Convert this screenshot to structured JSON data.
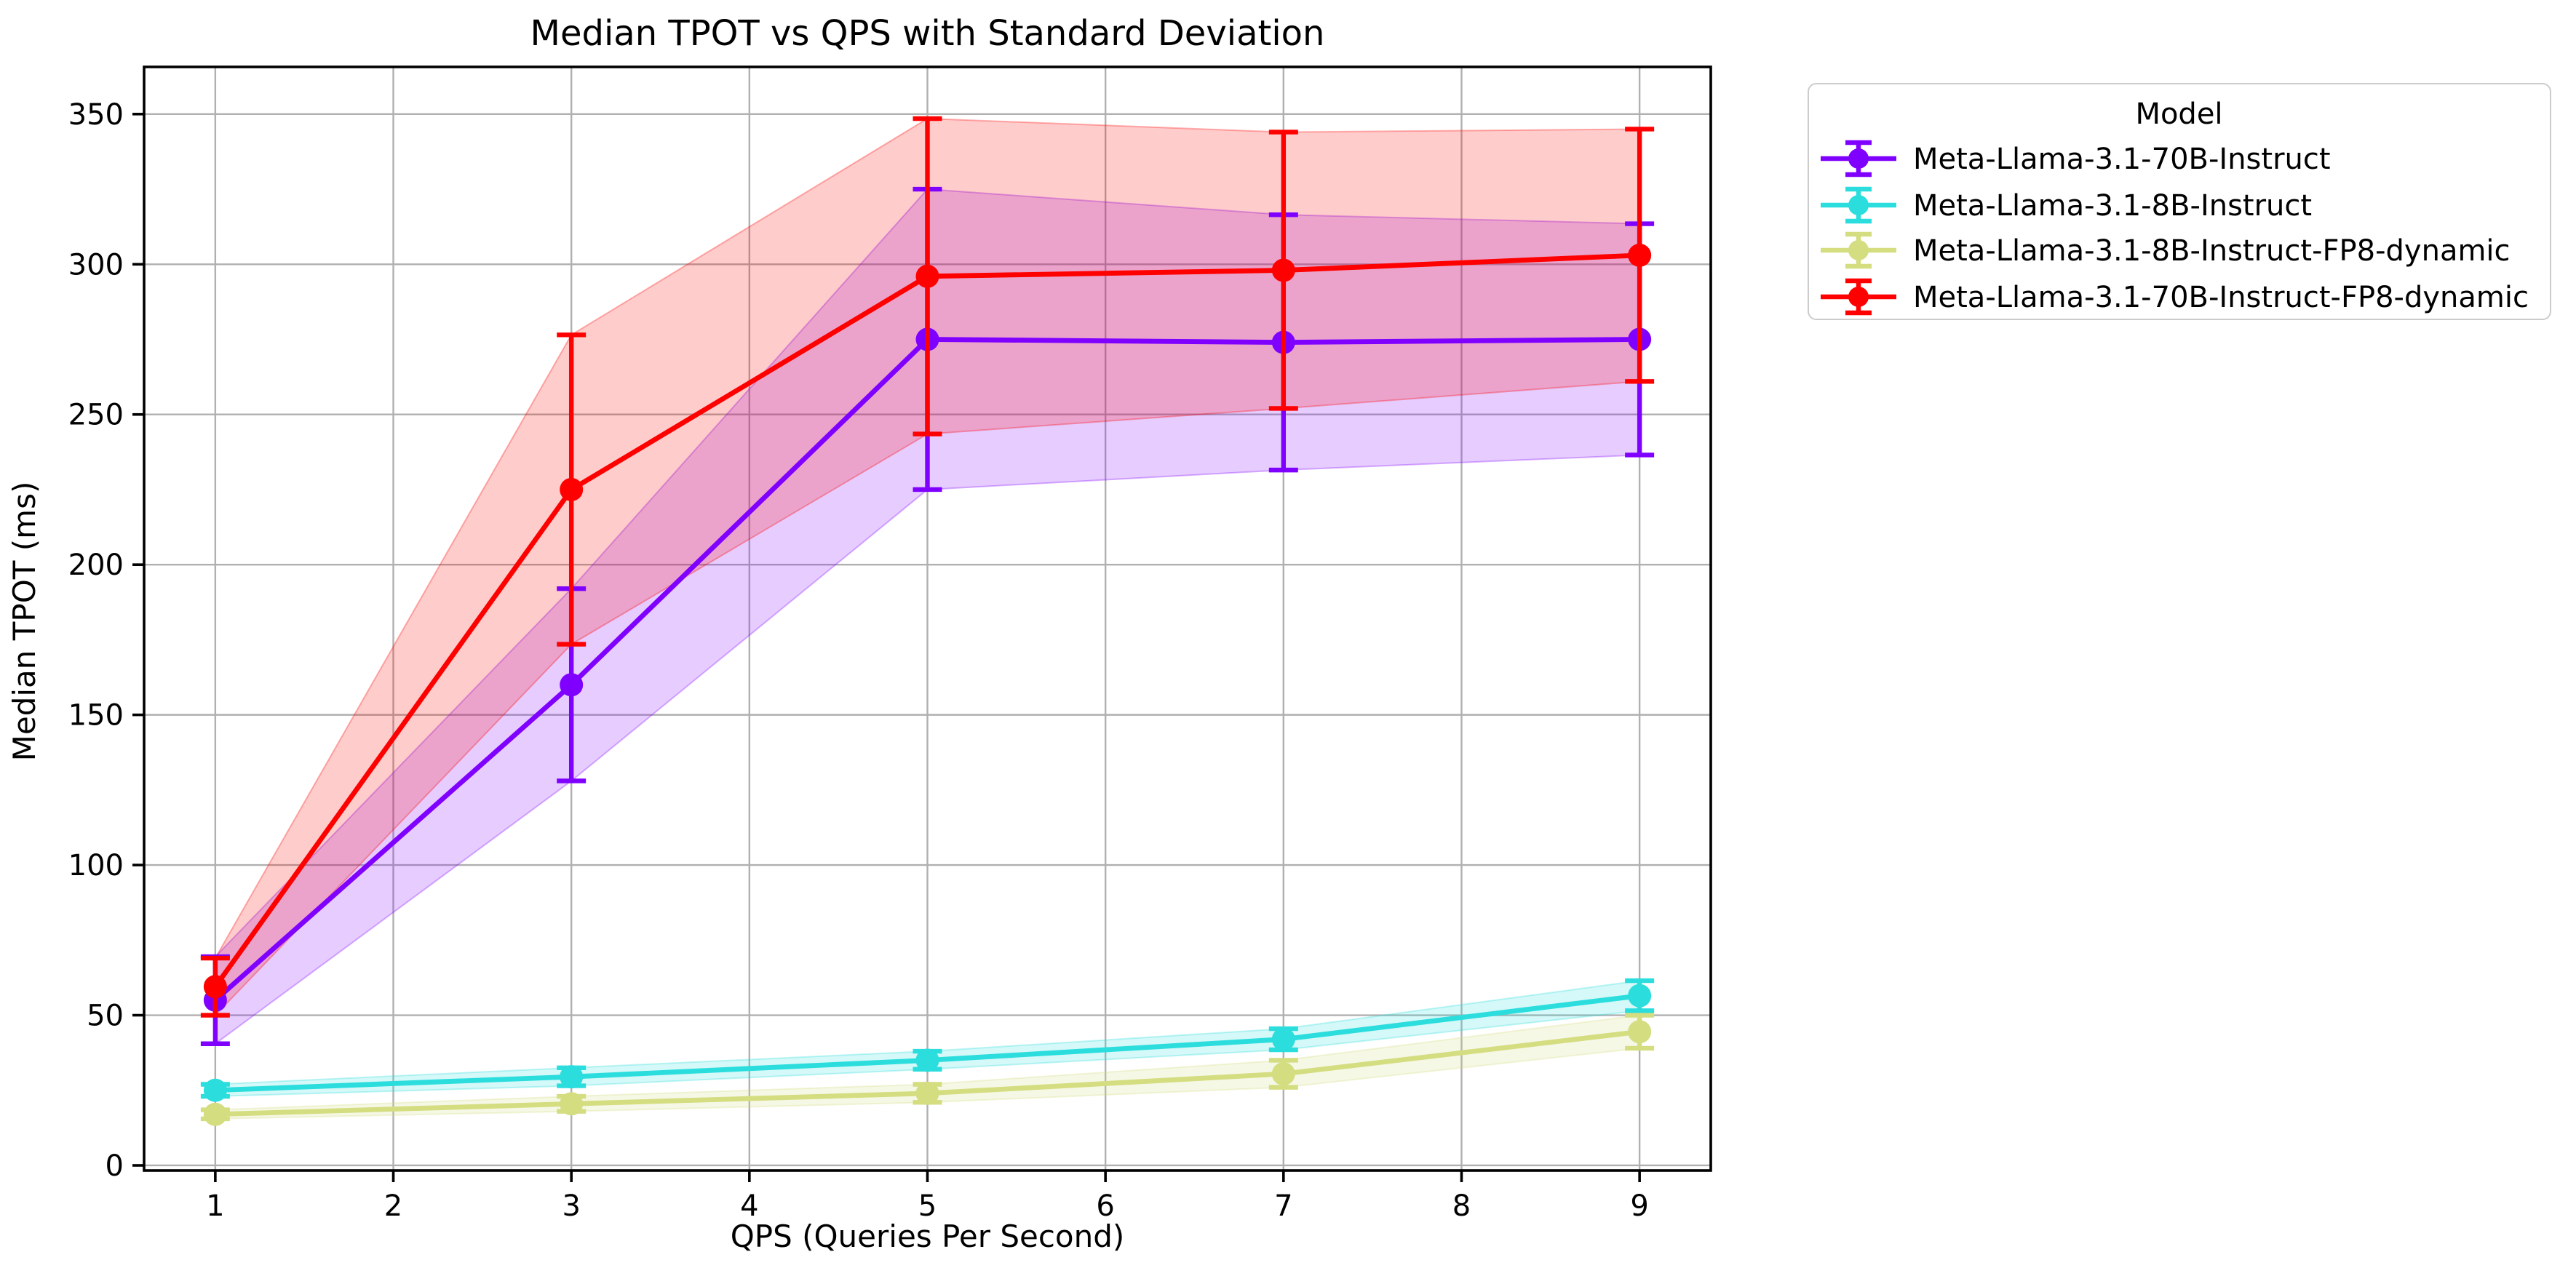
{
  "chart_data": {
    "type": "line",
    "title": "Median TPOT vs QPS with Standard Deviation",
    "xlabel": "QPS (Queries Per Second)",
    "ylabel": "Median TPOT (ms)",
    "x": [
      1,
      3,
      5,
      7,
      9
    ],
    "xticks": [
      1,
      2,
      3,
      4,
      5,
      6,
      7,
      8,
      9
    ],
    "yticks": [
      0,
      50,
      100,
      150,
      200,
      250,
      300,
      350
    ],
    "xlim": [
      0.6,
      9.4
    ],
    "ylim": [
      -1.7,
      365.7
    ],
    "grid": true,
    "grid_color": "#b0b0b0",
    "spine_color": "#000000",
    "band_alpha": 0.2,
    "marker": "circle",
    "error_bars": "standard deviation, capped",
    "legend": {
      "title": "Model",
      "position": "outside-upper-right",
      "border_color": "#cccccc"
    },
    "series": [
      {
        "name": "Meta-Llama-3.1-70B-Instruct",
        "color": "#8000FF",
        "mean": [
          55,
          160,
          275,
          274,
          275
        ],
        "std": [
          14.5,
          32,
          50,
          42.5,
          38.5
        ]
      },
      {
        "name": "Meta-Llama-3.1-8B-Instruct",
        "color": "#2BDDDD",
        "mean": [
          25,
          29.5,
          35,
          42,
          56.5
        ],
        "std": [
          2,
          3,
          3,
          3.5,
          5
        ]
      },
      {
        "name": "Meta-Llama-3.1-8B-Instruct-FP8-dynamic",
        "color": "#D4DD80",
        "mean": [
          17,
          20.5,
          24,
          30.5,
          44.5
        ],
        "std": [
          1.5,
          2.5,
          3,
          4.5,
          5.5
        ]
      },
      {
        "name": "Meta-Llama-3.1-70B-Instruct-FP8-dynamic",
        "color": "#FF0000",
        "mean": [
          59.5,
          225,
          296,
          298,
          303
        ],
        "std": [
          9.5,
          51.5,
          52.5,
          46,
          42
        ]
      }
    ]
  }
}
